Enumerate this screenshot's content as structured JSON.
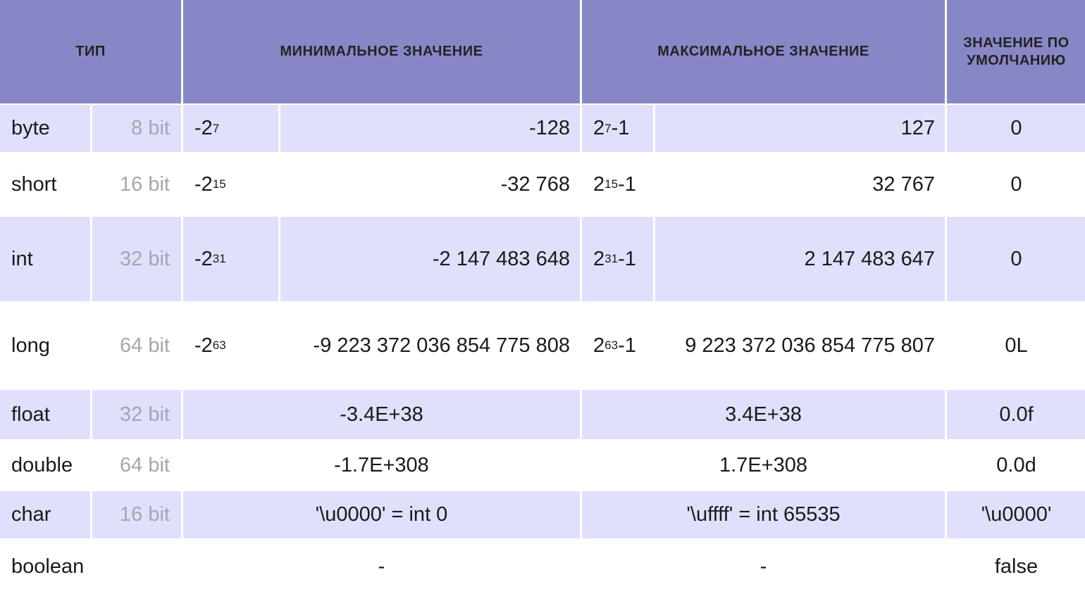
{
  "header": {
    "type": "ТИП",
    "min": "МИНИМАЛЬНОЕ ЗНАЧЕНИЕ",
    "max": "МАКСИМАЛЬНОЕ ЗНАЧЕНИЕ",
    "default": "ЗНАЧЕНИЕ ПО УМОЛЧАНИЮ"
  },
  "colors": {
    "header": "#8887c6",
    "shaded_row": "#e0e0fc",
    "bits_text": "#a6a6b0"
  },
  "rows": [
    {
      "name": "byte",
      "bits": "8 bit",
      "min_base": "-2",
      "min_exp": "7",
      "min": "-128",
      "max_base": "2",
      "max_exp": "7",
      "max_suffix": "-1",
      "max": "127",
      "default": "0"
    },
    {
      "name": "short",
      "bits": "16 bit",
      "min_base": "-2",
      "min_exp": "15",
      "min": "-32 768",
      "max_base": "2",
      "max_exp": "15",
      "max_suffix": "-1",
      "max": "32 767",
      "default": "0"
    },
    {
      "name": "int",
      "bits": "32 bit",
      "min_base": "-2",
      "min_exp": "31",
      "min": "-2 147 483 648",
      "max_base": "2",
      "max_exp": "31",
      "max_suffix": "-1",
      "max": "2 147 483 647",
      "default": "0"
    },
    {
      "name": "long",
      "bits": "64 bit",
      "min_base": "-2",
      "min_exp": "63",
      "min": "-9 223 372 036 854 775 808",
      "max_base": "2",
      "max_exp": "63",
      "max_suffix": "-1",
      "max": "9 223 372 036 854 775 807",
      "default": "0L"
    },
    {
      "name": "float",
      "bits": "32 bit",
      "min": "-3.4E+38",
      "max": "3.4E+38",
      "default": "0.0f"
    },
    {
      "name": "double",
      "bits": "64 bit",
      "min": "-1.7E+308",
      "max": "1.7E+308",
      "default": "0.0d"
    },
    {
      "name": "char",
      "bits": "16 bit",
      "min": "'\\u0000' = int 0",
      "max": "'\\uffff' = int 65535",
      "default": "'\\u0000'"
    },
    {
      "name": "boolean",
      "bits": "",
      "min": "-",
      "max": "-",
      "default": "false"
    }
  ]
}
